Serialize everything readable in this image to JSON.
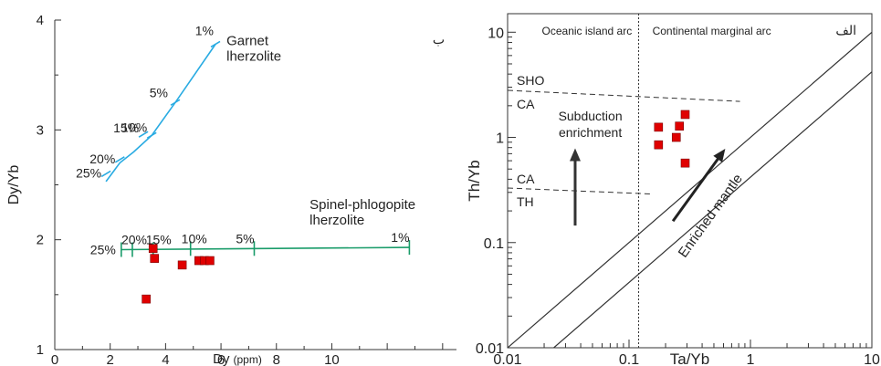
{
  "chart_data": [
    {
      "type": "scatter",
      "panel_label": "ب",
      "xlabel": "Dy",
      "xlabel_unit": "(ppm)",
      "ylabel": "Dy/Yb",
      "xlim": [
        0,
        14.5
      ],
      "ylim": [
        1,
        4
      ],
      "x_ticks": [
        "0",
        "2",
        "4",
        "6",
        "8",
        "10"
      ],
      "y_ticks": [
        "1",
        "2",
        "3",
        "4"
      ],
      "grid": false,
      "points": [
        {
          "x": 3.3,
          "y": 1.46
        },
        {
          "x": 3.55,
          "y": 1.92
        },
        {
          "x": 3.6,
          "y": 1.83
        },
        {
          "x": 4.6,
          "y": 1.77
        },
        {
          "x": 5.2,
          "y": 1.81
        },
        {
          "x": 5.4,
          "y": 1.81
        },
        {
          "x": 5.6,
          "y": 1.81
        }
      ],
      "melting_curves": [
        {
          "name": "Garnet lherzolite",
          "name_lines": [
            "Garnet",
            "lherzolite"
          ],
          "color": "#29abe2",
          "line": [
            [
              1.85,
              2.53
            ],
            [
              2.35,
              2.7
            ],
            [
              2.85,
              2.8
            ],
            [
              3.5,
              2.95
            ],
            [
              4.35,
              3.25
            ],
            [
              5.8,
              3.78
            ]
          ],
          "ticks": [
            {
              "label": "25%",
              "x": 1.85,
              "y": 2.6
            },
            {
              "label": "20%",
              "x": 2.35,
              "y": 2.73
            },
            {
              "label": "15%",
              "x": 3.2,
              "y": 2.96
            },
            {
              "label": "10%",
              "x": 3.5,
              "y": 2.95
            },
            {
              "label": "5%",
              "x": 4.35,
              "y": 3.25
            },
            {
              "label": "1%",
              "x": 5.8,
              "y": 3.78
            }
          ]
        },
        {
          "name": "Spinel-phlogopite lherzolite",
          "name_lines": [
            "Spinel-phlogopite",
            "lherzolite"
          ],
          "color": "#1a9c6a",
          "line": [
            [
              2.4,
              1.91
            ],
            [
              12.8,
              1.93
            ]
          ],
          "ticks": [
            {
              "label": "25%",
              "x": 2.4,
              "y": 1.91
            },
            {
              "label": "20%",
              "x": 2.8,
              "y": 1.91
            },
            {
              "label": "15%",
              "x": 3.55,
              "y": 1.91
            },
            {
              "label": "10%",
              "x": 4.9,
              "y": 1.92
            },
            {
              "label": "5%",
              "x": 7.2,
              "y": 1.92
            },
            {
              "label": "1%",
              "x": 12.8,
              "y": 1.93
            }
          ]
        }
      ]
    },
    {
      "type": "scatter",
      "panel_label": "الف",
      "xlabel": "Ta/Yb",
      "ylabel": "Th/Yb",
      "x_scale": "log",
      "y_scale": "log",
      "xlim": [
        0.01,
        10
      ],
      "ylim": [
        0.01,
        15
      ],
      "x_ticks": [
        "0.01",
        "0.1",
        "1",
        "10"
      ],
      "y_ticks": [
        "0.01",
        "0.1",
        "1",
        "10"
      ],
      "grid": false,
      "points": [
        {
          "x": 0.175,
          "y": 1.25
        },
        {
          "x": 0.175,
          "y": 0.85
        },
        {
          "x": 0.245,
          "y": 1.0
        },
        {
          "x": 0.26,
          "y": 1.28
        },
        {
          "x": 0.29,
          "y": 1.65
        },
        {
          "x": 0.29,
          "y": 0.57
        }
      ],
      "regions": [
        "Oceanic island arc",
        "Continental marginal arc"
      ],
      "field_labels": [
        "SHO",
        "CA",
        "CA",
        "TH"
      ],
      "annotations": [
        "Subduction",
        "enrichment",
        "Enriched mantle"
      ]
    }
  ],
  "colors": {
    "point": "#e00000",
    "axis": "#333333",
    "garnet": "#29abe2",
    "spinel": "#1a9c6a"
  }
}
